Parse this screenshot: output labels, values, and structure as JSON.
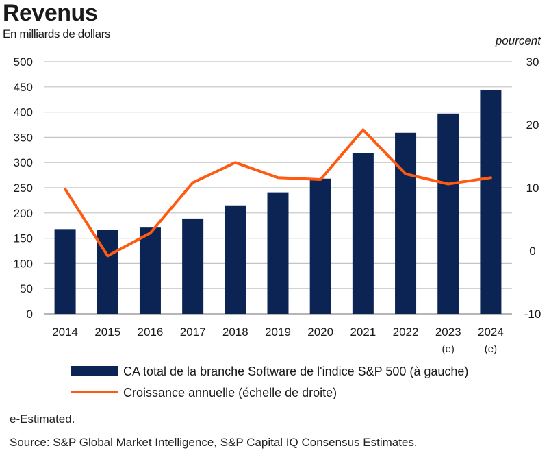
{
  "header": {
    "title": "Revenus",
    "subtitle": "En milliards de dollars",
    "right_axis_unit": "pourcent"
  },
  "chart_data": {
    "type": "bar",
    "categories": [
      "2014",
      "2015",
      "2016",
      "2017",
      "2018",
      "2019",
      "2020",
      "2021",
      "2022",
      "2023\n(e)",
      "2024\n(e)"
    ],
    "series": [
      {
        "name": "CA total de la branche Software de l'indice S&P 500 (à gauche)",
        "type": "bar",
        "axis": "left",
        "color": "#0b2454",
        "values": [
          168,
          166,
          171,
          189,
          215,
          241,
          268,
          319,
          359,
          397,
          443
        ]
      },
      {
        "name": "Croissance annuelle (échelle de droite)",
        "type": "line",
        "axis": "right",
        "color": "#ff5a12",
        "values": [
          9.8,
          -0.8,
          2.8,
          10.8,
          14.0,
          11.6,
          11.3,
          19.2,
          12.2,
          10.6,
          11.6
        ]
      }
    ],
    "left_axis": {
      "ylim": [
        0,
        500
      ],
      "ticks": [
        "0",
        "50",
        "100",
        "150",
        "200",
        "250",
        "300",
        "350",
        "400",
        "450",
        "500"
      ]
    },
    "right_axis": {
      "ylim": [
        -10,
        30
      ],
      "ticks": [
        "-10",
        "0",
        "10",
        "20",
        "30"
      ]
    },
    "grid": true,
    "legend": "bottom"
  },
  "footer": {
    "note": "e-Estimated.",
    "source": "Source: S&P Global Market Intelligence, S&P Capital IQ Consensus Estimates."
  }
}
